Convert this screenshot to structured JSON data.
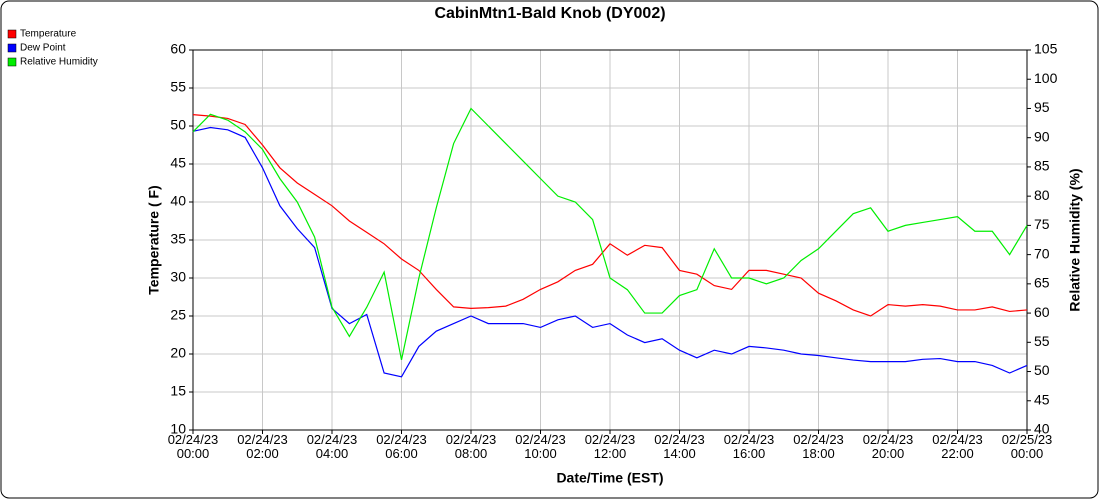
{
  "chart_data": {
    "type": "line",
    "title": "CabinMtn1-Bald Knob (DY002)",
    "xlabel": "Date/Time (EST)",
    "ylabel": "Temperature ( F)",
    "y2label": "Relative Humidity (%)",
    "legend": "top-left",
    "grid": true,
    "xlim": [
      "02/24/23 00:00",
      "02/25/23 00:00"
    ],
    "xticks": [
      {
        "value": "02/24/23 00:00",
        "label": "02/24/23\n00:00"
      },
      {
        "value": "02/24/23 02:00",
        "label": "02/24/23\n02:00"
      },
      {
        "value": "02/24/23 04:00",
        "label": "02/24/23\n04:00"
      },
      {
        "value": "02/24/23 06:00",
        "label": "02/24/23\n06:00"
      },
      {
        "value": "02/24/23 08:00",
        "label": "02/24/23\n08:00"
      },
      {
        "value": "02/24/23 10:00",
        "label": "02/24/23\n10:00"
      },
      {
        "value": "02/24/23 12:00",
        "label": "02/24/23\n12:00"
      },
      {
        "value": "02/24/23 14:00",
        "label": "02/24/23\n14:00"
      },
      {
        "value": "02/24/23 16:00",
        "label": "02/24/23\n16:00"
      },
      {
        "value": "02/24/23 18:00",
        "label": "02/24/23\n18:00"
      },
      {
        "value": "02/24/23 20:00",
        "label": "02/24/23\n20:00"
      },
      {
        "value": "02/24/23 22:00",
        "label": "02/24/23\n22:00"
      },
      {
        "value": "02/25/23 00:00",
        "label": "02/25/23\n00:00"
      }
    ],
    "ylim": [
      10,
      60
    ],
    "yticks": [
      10,
      15,
      20,
      25,
      30,
      35,
      40,
      45,
      50,
      55,
      60
    ],
    "y2lim": [
      40,
      105
    ],
    "y2ticks": [
      40,
      45,
      50,
      55,
      60,
      65,
      70,
      75,
      80,
      85,
      90,
      95,
      100,
      105
    ],
    "x": [
      "02/24/23 00:00",
      "02/24/23 00:30",
      "02/24/23 01:00",
      "02/24/23 01:30",
      "02/24/23 02:00",
      "02/24/23 02:30",
      "02/24/23 03:00",
      "02/24/23 03:30",
      "02/24/23 04:00",
      "02/24/23 04:30",
      "02/24/23 05:00",
      "02/24/23 05:30",
      "02/24/23 06:00",
      "02/24/23 06:30",
      "02/24/23 07:00",
      "02/24/23 07:30",
      "02/24/23 08:00",
      "02/24/23 08:30",
      "02/24/23 09:00",
      "02/24/23 09:30",
      "02/24/23 10:00",
      "02/24/23 10:30",
      "02/24/23 11:00",
      "02/24/23 11:30",
      "02/24/23 12:00",
      "02/24/23 12:30",
      "02/24/23 13:00",
      "02/24/23 13:30",
      "02/24/23 14:00",
      "02/24/23 14:30",
      "02/24/23 15:00",
      "02/24/23 15:30",
      "02/24/23 16:00",
      "02/24/23 16:30",
      "02/24/23 17:00",
      "02/24/23 17:30",
      "02/24/23 18:00",
      "02/24/23 18:30",
      "02/24/23 19:00",
      "02/24/23 19:30",
      "02/24/23 20:00",
      "02/24/23 20:30",
      "02/24/23 21:00",
      "02/24/23 21:30",
      "02/24/23 22:00",
      "02/24/23 22:30",
      "02/24/23 23:00",
      "02/24/23 23:30",
      "02/25/23 00:00"
    ],
    "series": [
      {
        "name": "Temperature",
        "color": "#ff0000",
        "values": [
          51.5,
          51.3,
          51,
          50.2,
          47.5,
          44.5,
          42.5,
          41,
          39.5,
          37.5,
          36,
          34.5,
          32.5,
          31,
          28.5,
          26.2,
          26,
          26.1,
          26.3,
          27.2,
          28.5,
          29.5,
          31,
          31.8,
          34.5,
          33,
          34.3,
          34,
          31,
          30.5,
          29,
          28.5,
          31,
          31,
          30.5,
          30,
          28,
          27,
          25.8,
          25,
          26.5,
          26.3,
          26.5,
          26.3,
          25.8,
          25.8,
          26.2,
          25.6,
          25.8
        ]
      },
      {
        "name": "Dew Point",
        "color": "#0000ff",
        "values": [
          49.3,
          49.8,
          49.5,
          48.5,
          44.5,
          39.5,
          36.5,
          34,
          26,
          24,
          25.2,
          17.5,
          17,
          21,
          23,
          24,
          25,
          24,
          24,
          24,
          23.5,
          24.5,
          25,
          23.5,
          24,
          22.5,
          21.5,
          22,
          20.5,
          19.5,
          20.5,
          20,
          21,
          20.8,
          20.5,
          20,
          19.8,
          19.5,
          19.2,
          19,
          19,
          19,
          19.3,
          19.4,
          19,
          19,
          18.5,
          17.5,
          18.5
        ]
      },
      {
        "name": "Relative Humidity",
        "color": "#00ee00",
        "axis": "y2",
        "values": [
          91,
          94,
          93,
          91,
          88,
          83,
          79,
          73,
          61,
          56,
          61,
          67,
          52,
          66,
          78,
          89,
          95,
          92,
          89,
          86,
          83,
          80,
          79,
          76,
          66,
          64,
          60,
          60,
          63,
          64,
          71,
          66,
          66,
          65,
          66,
          69,
          71,
          74,
          77,
          78,
          74,
          75,
          75.5,
          76,
          76.5,
          74,
          74,
          70,
          75
        ]
      }
    ]
  }
}
